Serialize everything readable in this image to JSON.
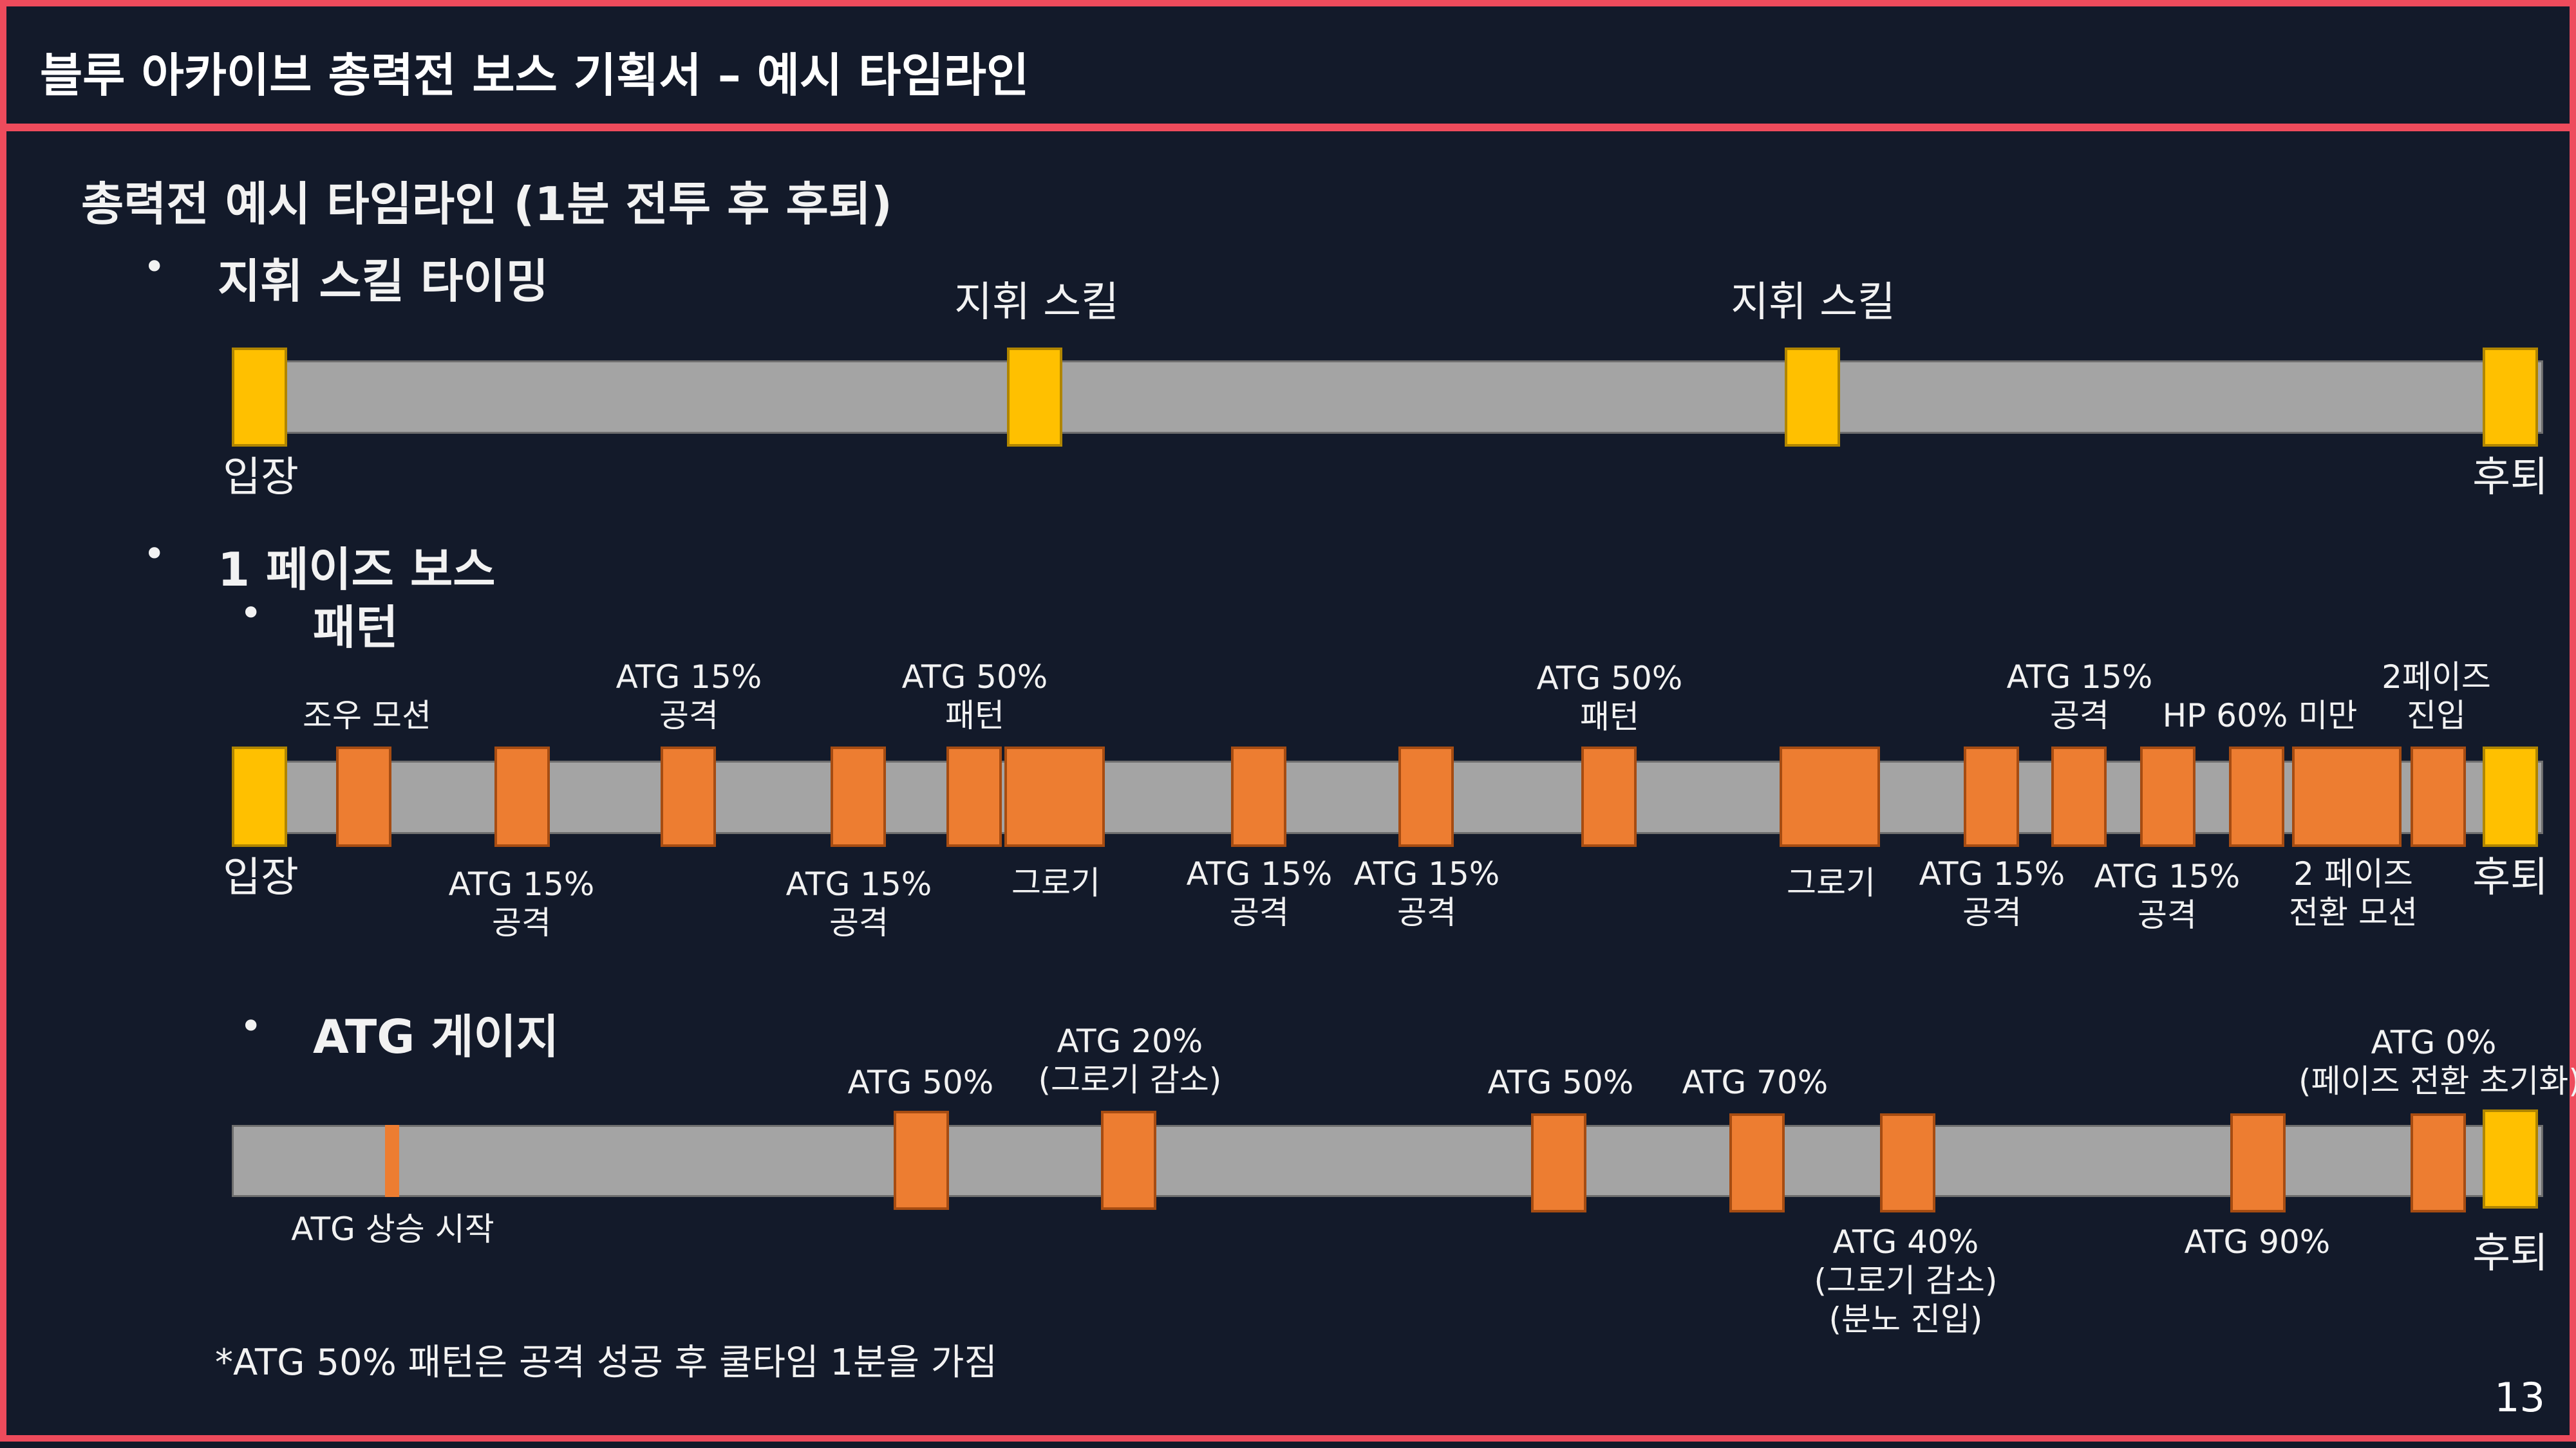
{
  "header": {
    "title": "블루 아카이브 총력전 보스 기획서 – 예시 타임라인"
  },
  "main": {
    "heading": "총력전 예시 타임라인 (1분 전투 후 후퇴)",
    "command": {
      "bullet_title": "지휘 스킬 타이밍",
      "label_a": "지휘 스킬",
      "label_b": "지휘 스킬",
      "start": "입장",
      "end": "후퇴"
    },
    "phase": {
      "bullet_title": "1 페이즈 보스",
      "sub_title": "패턴",
      "start": "입장",
      "end": "후퇴",
      "above": {
        "a1": "조우 모션",
        "a2l1": "ATG 15%",
        "a2l2": "공격",
        "a3l1": "ATG 50%",
        "a3l2": "패턴",
        "a4l1": "ATG 50%",
        "a4l2": "패턴",
        "a5l1": "ATG 15%",
        "a5l2": "공격",
        "a6": "HP 60% 미만",
        "a7l1": "2페이즈",
        "a7l2": "진입"
      },
      "below": {
        "b1l1": "ATG 15%",
        "b1l2": "공격",
        "b2l1": "ATG 15%",
        "b2l2": "공격",
        "b3": "그로기",
        "b4l1": "ATG 15%",
        "b4l2": "공격",
        "b5l1": "ATG 15%",
        "b5l2": "공격",
        "b6": "그로기",
        "b7l1": "ATG 15%",
        "b7l2": "공격",
        "b8l1": "ATG 15%",
        "b8l2": "공격",
        "b9l1": "2 페이즈",
        "b9l2": "전환 모션"
      }
    },
    "atg": {
      "sub_title": "ATG 게이지",
      "above": {
        "a1": "ATG 50%",
        "a2l1": "ATG 20%",
        "a2l2": "(그로기 감소)",
        "a3": "ATG 50%",
        "a4": "ATG 70%",
        "a5l1": "ATG 0%",
        "a5l2": "(페이즈 전환 초기화)"
      },
      "below": {
        "b1": "ATG 상승 시작",
        "b2l1": "ATG 40%",
        "b2l2": "(그로기 감소)",
        "b2l3": "(분노 진입)",
        "b3": "ATG 90%",
        "end": "후퇴"
      }
    },
    "footnote": "*ATG 50% 패턴은 공격 성공 후 쿨타임 1분을 가짐"
  },
  "footer": {
    "page_number": "13"
  },
  "colors": {
    "accent": "#ee4b5c",
    "background": "#131a2a",
    "marker_orange": "#ed7d31",
    "marker_yellow": "#ffc000",
    "track": "#a4a4a4"
  }
}
